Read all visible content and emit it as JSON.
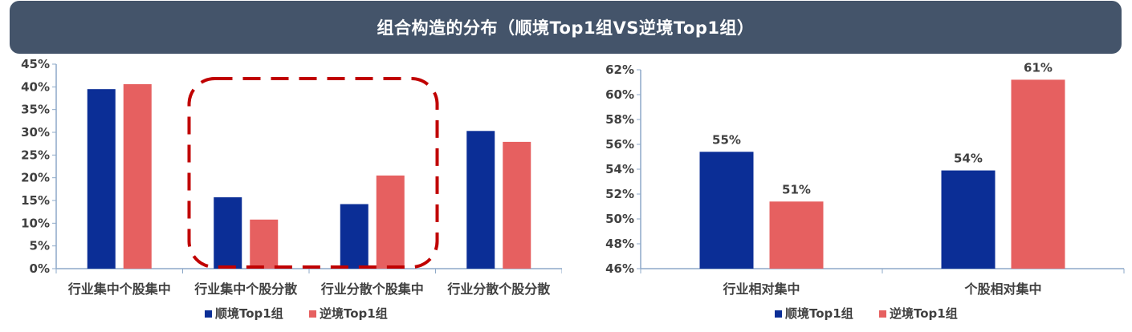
{
  "title": "组合构造的分布（顺境Top1组VS逆境Top1组）",
  "colors": {
    "series1": "#0b2e96",
    "series2": "#e66060",
    "highlight": "#c00000",
    "banner": "#44546a"
  },
  "chart_data": [
    {
      "type": "bar",
      "categories": [
        "行业集中个股集中",
        "行业集中个股分散",
        "行业分散个股集中",
        "行业分散个股分散"
      ],
      "series": [
        {
          "name": "顺境Top1组",
          "values": [
            0.395,
            0.157,
            0.142,
            0.303
          ]
        },
        {
          "name": "逆境Top1组",
          "values": [
            0.406,
            0.108,
            0.205,
            0.279
          ]
        }
      ],
      "ylim": [
        0,
        0.45
      ],
      "ytick_step": 0.05,
      "yticks": [
        "0%",
        "5%",
        "10%",
        "15%",
        "20%",
        "25%",
        "30%",
        "35%",
        "40%",
        "45%"
      ],
      "highlight_categories": [
        1,
        2
      ],
      "legend": "bottom",
      "grid": false
    },
    {
      "type": "bar",
      "categories": [
        "行业相对集中",
        "个股相对集中"
      ],
      "series": [
        {
          "name": "顺境Top1组",
          "values": [
            0.554,
            0.539
          ],
          "labels": [
            "55%",
            "54%"
          ]
        },
        {
          "name": "逆境Top1组",
          "values": [
            0.514,
            0.612
          ],
          "labels": [
            "51%",
            "61%"
          ]
        }
      ],
      "ylim": [
        0.46,
        0.62
      ],
      "ytick_step": 0.02,
      "yticks": [
        "46%",
        "48%",
        "50%",
        "52%",
        "54%",
        "56%",
        "58%",
        "60%",
        "62%"
      ],
      "legend": "bottom",
      "grid": false
    }
  ]
}
